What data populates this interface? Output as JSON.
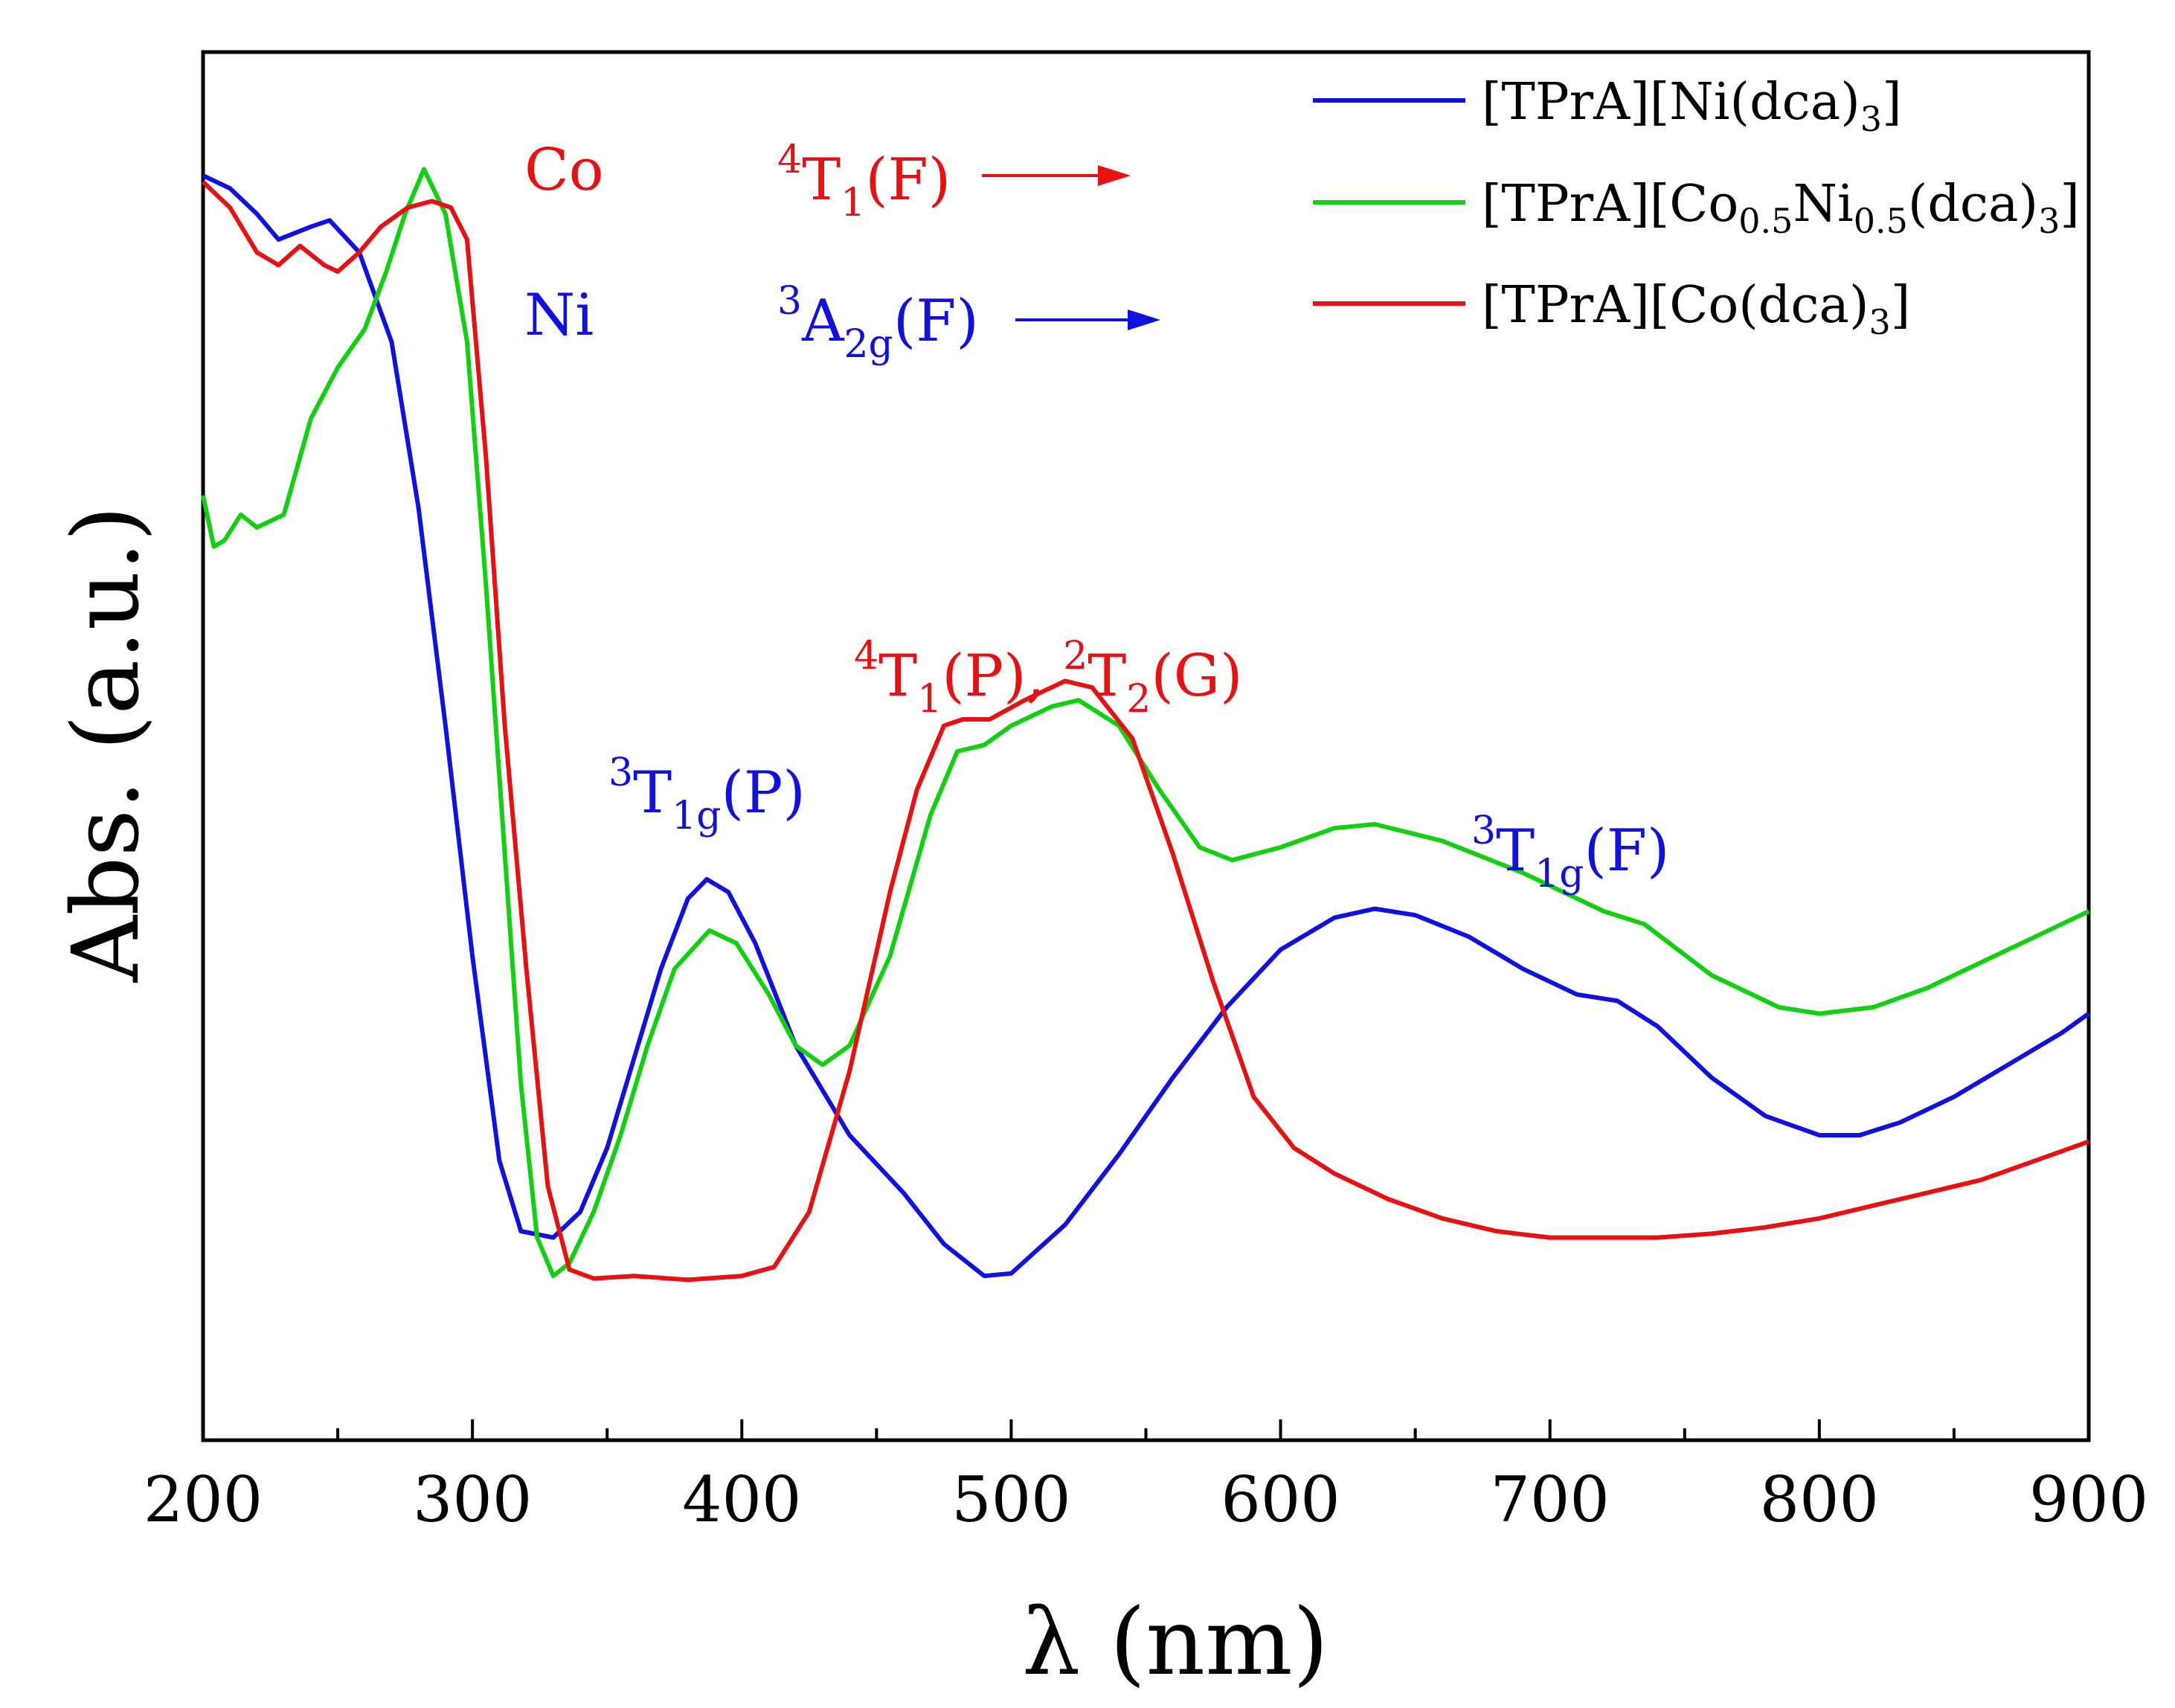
{
  "chart_data": {
    "type": "line",
    "xlabel": "λ (nm)",
    "ylabel": "Abs. (a.u.)",
    "xlim": [
      200,
      900
    ],
    "ylim": [
      0,
      1
    ],
    "x_ticks": [
      200,
      300,
      400,
      500,
      600,
      700,
      800,
      900
    ],
    "x_tick_labels": [
      "200",
      "300",
      "400",
      "500",
      "600",
      "700",
      "800",
      "900"
    ],
    "series": [
      {
        "name": "[TPrA][Ni(dca)3]",
        "legend": {
          "pre": "[TPrA][Ni(dca)",
          "sub": "3",
          "post": "]"
        },
        "color": "#1010e0",
        "points": [
          [
            200,
            0.95
          ],
          [
            210,
            0.94
          ],
          [
            220,
            0.92
          ],
          [
            228,
            0.9
          ],
          [
            240,
            0.91
          ],
          [
            247,
            0.915
          ],
          [
            258,
            0.89
          ],
          [
            270,
            0.82
          ],
          [
            280,
            0.69
          ],
          [
            290,
            0.52
          ],
          [
            300,
            0.34
          ],
          [
            310,
            0.18
          ],
          [
            318,
            0.125
          ],
          [
            330,
            0.12
          ],
          [
            340,
            0.14
          ],
          [
            350,
            0.19
          ],
          [
            360,
            0.26
          ],
          [
            370,
            0.33
          ],
          [
            380,
            0.385
          ],
          [
            387,
            0.4
          ],
          [
            395,
            0.39
          ],
          [
            405,
            0.35
          ],
          [
            420,
            0.27
          ],
          [
            440,
            0.2
          ],
          [
            460,
            0.155
          ],
          [
            475,
            0.115
          ],
          [
            490,
            0.09
          ],
          [
            500,
            0.092
          ],
          [
            520,
            0.13
          ],
          [
            540,
            0.185
          ],
          [
            560,
            0.245
          ],
          [
            580,
            0.3
          ],
          [
            600,
            0.345
          ],
          [
            620,
            0.37
          ],
          [
            635,
            0.377
          ],
          [
            650,
            0.372
          ],
          [
            670,
            0.355
          ],
          [
            690,
            0.33
          ],
          [
            710,
            0.31
          ],
          [
            725,
            0.305
          ],
          [
            740,
            0.285
          ],
          [
            760,
            0.245
          ],
          [
            780,
            0.215
          ],
          [
            800,
            0.2
          ],
          [
            815,
            0.2
          ],
          [
            830,
            0.21
          ],
          [
            850,
            0.23
          ],
          [
            870,
            0.255
          ],
          [
            890,
            0.28
          ],
          [
            900,
            0.295
          ]
        ]
      },
      {
        "name": "[TPrA][Co0.5Ni0.5(dca)3]",
        "legend": {
          "pre": "[TPrA][Co",
          "sub": "0.5",
          "mid": "Ni",
          "sub2": "0.5",
          "post": "(dca)",
          "sub3": "3",
          "post2": "]"
        },
        "color": "#10d010",
        "points": [
          [
            200,
            0.7
          ],
          [
            204,
            0.66
          ],
          [
            208,
            0.665
          ],
          [
            214,
            0.685
          ],
          [
            220,
            0.675
          ],
          [
            230,
            0.685
          ],
          [
            240,
            0.76
          ],
          [
            250,
            0.8
          ],
          [
            260,
            0.83
          ],
          [
            268,
            0.875
          ],
          [
            275,
            0.92
          ],
          [
            282,
            0.955
          ],
          [
            290,
            0.92
          ],
          [
            298,
            0.82
          ],
          [
            305,
            0.63
          ],
          [
            312,
            0.42
          ],
          [
            318,
            0.24
          ],
          [
            324,
            0.12
          ],
          [
            330,
            0.09
          ],
          [
            336,
            0.1
          ],
          [
            345,
            0.14
          ],
          [
            355,
            0.2
          ],
          [
            365,
            0.27
          ],
          [
            375,
            0.33
          ],
          [
            388,
            0.36
          ],
          [
            398,
            0.35
          ],
          [
            410,
            0.31
          ],
          [
            420,
            0.27
          ],
          [
            430,
            0.255
          ],
          [
            440,
            0.27
          ],
          [
            455,
            0.34
          ],
          [
            470,
            0.45
          ],
          [
            480,
            0.5
          ],
          [
            490,
            0.505
          ],
          [
            500,
            0.52
          ],
          [
            515,
            0.535
          ],
          [
            525,
            0.54
          ],
          [
            540,
            0.52
          ],
          [
            555,
            0.47
          ],
          [
            570,
            0.425
          ],
          [
            582,
            0.415
          ],
          [
            600,
            0.425
          ],
          [
            620,
            0.44
          ],
          [
            635,
            0.443
          ],
          [
            660,
            0.43
          ],
          [
            690,
            0.405
          ],
          [
            720,
            0.375
          ],
          [
            735,
            0.365
          ],
          [
            760,
            0.325
          ],
          [
            785,
            0.3
          ],
          [
            800,
            0.295
          ],
          [
            820,
            0.3
          ],
          [
            840,
            0.315
          ],
          [
            860,
            0.335
          ],
          [
            880,
            0.355
          ],
          [
            900,
            0.375
          ]
        ]
      },
      {
        "name": "[TPrA][Co(dca)3]",
        "legend": {
          "pre": "[TPrA][Co(dca)",
          "sub": "3",
          "post": "]"
        },
        "color": "#e81010",
        "points": [
          [
            200,
            0.945
          ],
          [
            210,
            0.925
          ],
          [
            220,
            0.89
          ],
          [
            228,
            0.88
          ],
          [
            236,
            0.895
          ],
          [
            245,
            0.88
          ],
          [
            250,
            0.875
          ],
          [
            258,
            0.89
          ],
          [
            266,
            0.91
          ],
          [
            276,
            0.925
          ],
          [
            285,
            0.93
          ],
          [
            292,
            0.925
          ],
          [
            298,
            0.9
          ],
          [
            305,
            0.73
          ],
          [
            312,
            0.52
          ],
          [
            320,
            0.33
          ],
          [
            328,
            0.16
          ],
          [
            336,
            0.095
          ],
          [
            345,
            0.088
          ],
          [
            360,
            0.09
          ],
          [
            380,
            0.087
          ],
          [
            400,
            0.09
          ],
          [
            412,
            0.097
          ],
          [
            425,
            0.14
          ],
          [
            440,
            0.25
          ],
          [
            455,
            0.39
          ],
          [
            465,
            0.47
          ],
          [
            475,
            0.52
          ],
          [
            482,
            0.525
          ],
          [
            492,
            0.525
          ],
          [
            505,
            0.54
          ],
          [
            520,
            0.555
          ],
          [
            530,
            0.55
          ],
          [
            545,
            0.51
          ],
          [
            560,
            0.42
          ],
          [
            575,
            0.32
          ],
          [
            590,
            0.23
          ],
          [
            605,
            0.19
          ],
          [
            620,
            0.17
          ],
          [
            640,
            0.15
          ],
          [
            660,
            0.135
          ],
          [
            680,
            0.125
          ],
          [
            700,
            0.12
          ],
          [
            720,
            0.12
          ],
          [
            740,
            0.12
          ],
          [
            760,
            0.123
          ],
          [
            780,
            0.128
          ],
          [
            800,
            0.135
          ],
          [
            820,
            0.145
          ],
          [
            840,
            0.155
          ],
          [
            860,
            0.165
          ],
          [
            880,
            0.18
          ],
          [
            900,
            0.195
          ]
        ]
      }
    ],
    "annotations": [
      {
        "id": "co-label",
        "text": "Co",
        "color": "#e81010"
      },
      {
        "id": "co-transition",
        "sup": "4",
        "main": "T",
        "sub": "1",
        "tail": "(F)",
        "color": "#e81010"
      },
      {
        "id": "ni-label",
        "text": "Ni",
        "color": "#1010e0"
      },
      {
        "id": "ni-transition",
        "sup": "3",
        "main": "A",
        "sub": "2g",
        "tail": "(F)",
        "color": "#1010e0"
      },
      {
        "id": "t1gp",
        "sup": "3",
        "main": "T",
        "sub": "1g",
        "tail": "(P)",
        "color": "#1010e0"
      },
      {
        "id": "t1p-t2g",
        "sup": "4",
        "main": "T",
        "sub": "1",
        "tail": "(P), ",
        "sup2": "2",
        "main2": "T",
        "sub2": "2",
        "tail2": "(G)",
        "color": "#e81010"
      },
      {
        "id": "t1gf",
        "sup": "3",
        "main": "T",
        "sub": "1g",
        "tail": "(F)",
        "color": "#1010e0"
      }
    ]
  }
}
